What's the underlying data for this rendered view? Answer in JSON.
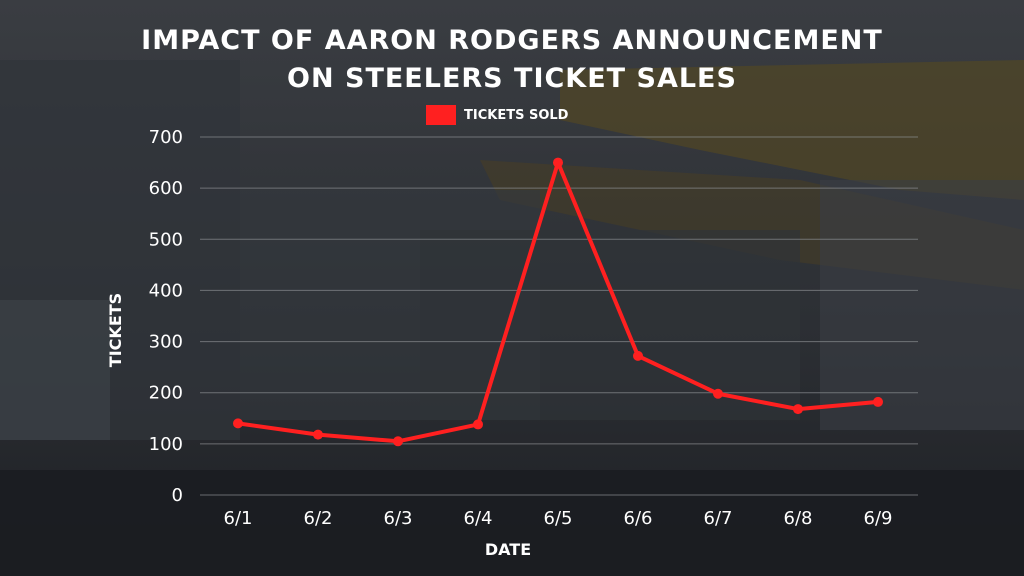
{
  "chart_data": {
    "type": "line",
    "title_line1": "IMPACT OF AARON RODGERS ANNOUNCEMENT",
    "title_line2": "ON STEELERS TICKET SALES",
    "xlabel": "DATE",
    "ylabel": "TICKETS",
    "categories": [
      "6/1",
      "6/2",
      "6/3",
      "6/4",
      "6/5",
      "6/6",
      "6/7",
      "6/8",
      "6/9"
    ],
    "series": [
      {
        "name": "TICKETS SOLD",
        "values": [
          140,
          118,
          105,
          138,
          650,
          272,
          198,
          168,
          182
        ],
        "color": "#ff2020"
      }
    ],
    "ylim": [
      0,
      700
    ],
    "yticks": [
      0,
      100,
      200,
      300,
      400,
      500,
      600,
      700
    ],
    "grid": true,
    "legend_position": "top-center"
  },
  "colors": {
    "background": "#2a2d31",
    "text": "#ffffff",
    "gridline": "#8a8d91",
    "series": "#ff2020"
  }
}
